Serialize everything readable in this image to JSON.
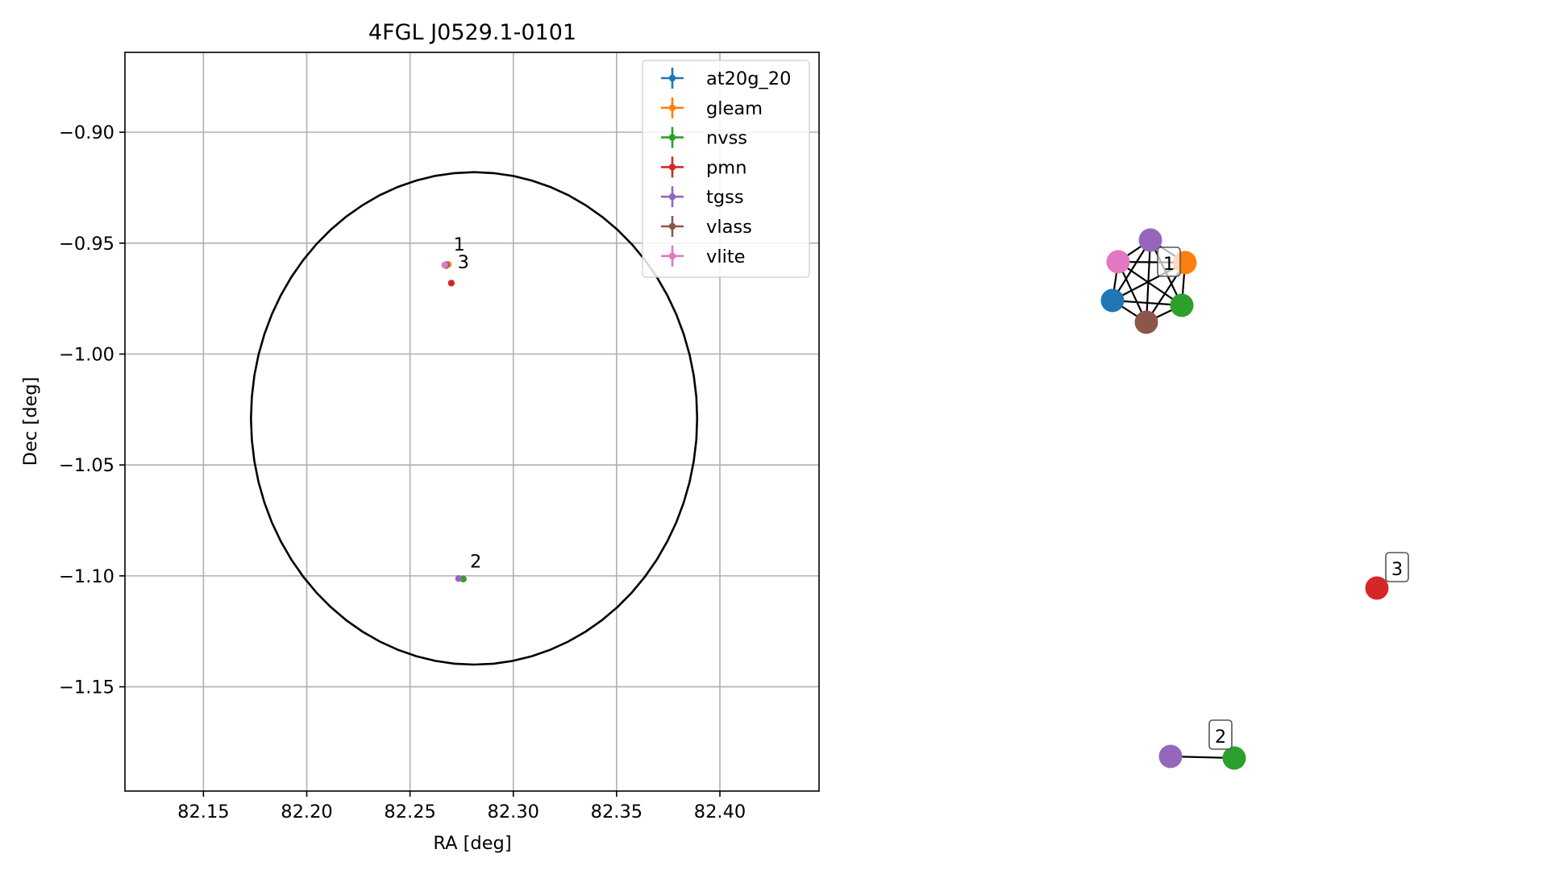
{
  "chart_data": [
    {
      "type": "scatter",
      "title": "4FGL J0529.1-0101",
      "xlabel": "RA [deg]",
      "ylabel": "Dec [deg]",
      "xlim": [
        82.112,
        82.448
      ],
      "ylim": [
        -1.197,
        -0.864
      ],
      "xticks": [
        82.15,
        82.2,
        82.25,
        82.3,
        82.35,
        82.4
      ],
      "xtick_labels": [
        "82.15",
        "82.20",
        "82.25",
        "82.30",
        "82.35",
        "82.40"
      ],
      "yticks": [
        -0.9,
        -0.95,
        -1.0,
        -1.05,
        -1.1,
        -1.15
      ],
      "ytick_labels": [
        "−0.90",
        "−0.95",
        "−1.00",
        "−1.05",
        "−1.10",
        "−1.15"
      ],
      "grid": true,
      "legend_position": "upper right",
      "series": [
        {
          "name": "at20g_20",
          "color": "#1f77b4",
          "points": [
            {
              "x": 82.2672,
              "y": -0.9598
            }
          ]
        },
        {
          "name": "gleam",
          "color": "#ff7f0e",
          "points": [
            {
              "x": 82.2685,
              "y": -0.9596
            }
          ]
        },
        {
          "name": "nvss",
          "color": "#2ca02c",
          "points": [
            {
              "x": 82.2674,
              "y": -0.9601
            },
            {
              "x": 82.2758,
              "y": -1.1014
            }
          ]
        },
        {
          "name": "pmn",
          "color": "#d62728",
          "points": [
            {
              "x": 82.27,
              "y": -0.968
            }
          ]
        },
        {
          "name": "tgss",
          "color": "#9467bd",
          "points": [
            {
              "x": 82.2676,
              "y": -0.9597
            },
            {
              "x": 82.2735,
              "y": -1.1012
            }
          ]
        },
        {
          "name": "vlass",
          "color": "#8c564b",
          "points": [
            {
              "x": 82.2673,
              "y": -0.96
            }
          ]
        },
        {
          "name": "vlite",
          "color": "#e377c2",
          "points": [
            {
              "x": 82.2668,
              "y": -0.9599
            }
          ]
        }
      ],
      "ellipse": {
        "center_x": 82.281,
        "center_y": -1.029,
        "semi_axis_ra": 0.108,
        "semi_axis_dec": 0.111,
        "color": "#000000"
      },
      "annotations": [
        {
          "text": "1",
          "x": 82.271,
          "y": -0.9533
        },
        {
          "text": "3",
          "x": 82.273,
          "y": -0.9613
        },
        {
          "text": "2",
          "x": 82.279,
          "y": -1.0963
        }
      ]
    },
    {
      "type": "network",
      "components": [
        {
          "label": "1",
          "nodes": [
            "tgss",
            "gleam",
            "nvss",
            "vlass",
            "at20g_20",
            "vlite"
          ],
          "fully_connected": true
        },
        {
          "label": "2",
          "nodes": [
            "tgss",
            "nvss"
          ],
          "fully_connected": true
        },
        {
          "label": "3",
          "nodes": [
            "pmn"
          ],
          "fully_connected": true
        }
      ]
    }
  ]
}
